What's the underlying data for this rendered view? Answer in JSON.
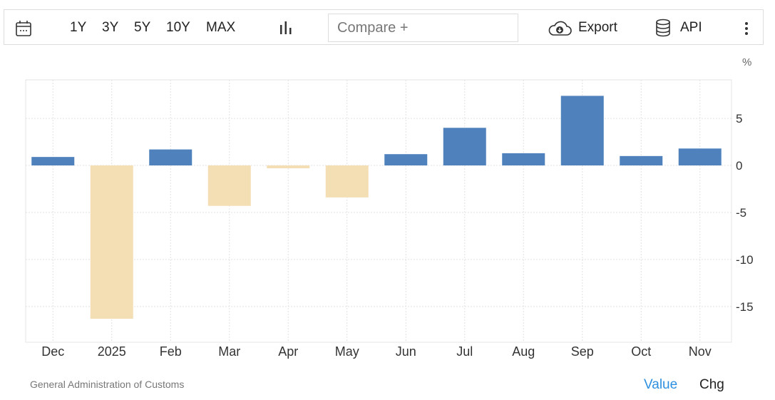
{
  "toolbar": {
    "ranges": [
      "1Y",
      "3Y",
      "5Y",
      "10Y",
      "MAX"
    ],
    "compare_placeholder": "Compare +",
    "export_label": "Export",
    "api_label": "API"
  },
  "footer": {
    "source": "General Administration of Customs",
    "value_label": "Value",
    "chg_label": "Chg"
  },
  "colors": {
    "positive": "#4f81bd",
    "negative": "#f4deb4"
  },
  "chart_data": {
    "type": "bar",
    "unit": "%",
    "categories": [
      "Dec",
      "2025",
      "Feb",
      "Mar",
      "Apr",
      "May",
      "Jun",
      "Jul",
      "Aug",
      "Sep",
      "Oct",
      "Nov"
    ],
    "values": [
      0.9,
      -16.3,
      1.7,
      -4.3,
      -0.3,
      -3.4,
      1.2,
      4.0,
      1.3,
      7.4,
      1.0,
      1.8
    ],
    "yticks": [
      5,
      0,
      -5,
      -10,
      -15
    ],
    "ylim": [
      -18.8,
      9.1
    ],
    "grid": true,
    "title": "",
    "xlabel": "",
    "ylabel": "%"
  }
}
